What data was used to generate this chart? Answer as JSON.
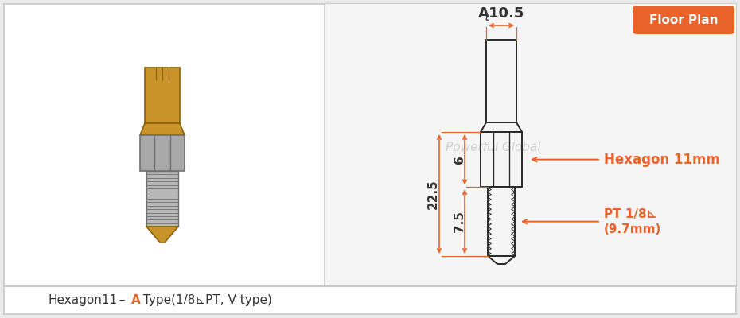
{
  "bg_color": "#ebebeb",
  "left_panel_bg": "#ffffff",
  "right_panel_bg": "#f0f0f0",
  "orange_color": "#e8622a",
  "dark_color": "#2a2a2a",
  "title_text": "Floor Plan",
  "watermark": "Powerful Global",
  "bottom_label_black1": "Hexagon11",
  "bottom_label_dash": " – ",
  "bottom_label_orange": "A",
  "bottom_label_rest": " Type(1/8⊾PT, V type)",
  "dim_top_width": "Ą10.5",
  "dim_height_total": "22.5",
  "dim_hex_height": "6",
  "dim_thread_height": "7.5",
  "label_hexagon": "Hexagon 11mm",
  "label_pt": "PT 1/8⊾",
  "label_pt2": "(9.7mm)"
}
